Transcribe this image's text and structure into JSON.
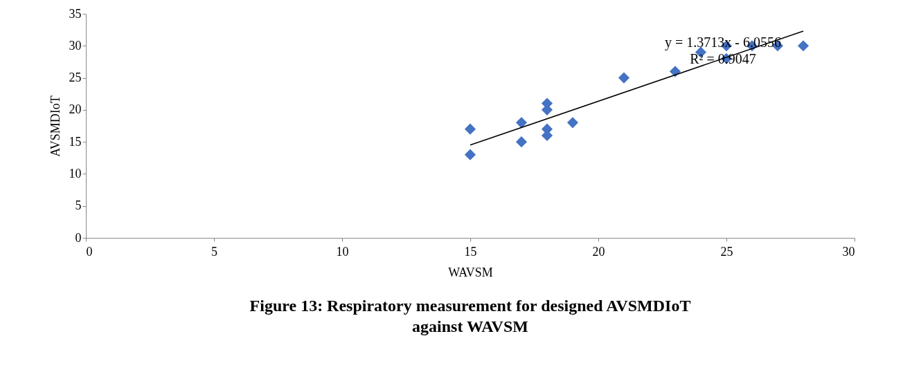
{
  "chart_data": {
    "type": "scatter",
    "title": "Figure 13: Respiratory  measurement  for designed AVSMDIoT against WAVSM",
    "xlabel": "WAVSM",
    "ylabel": "AVSMDIoT",
    "series": [
      {
        "color": "#4472c4",
        "x": [
          15,
          15,
          17,
          17,
          18,
          18,
          18,
          18,
          19,
          21,
          23,
          24,
          25,
          25,
          26,
          27,
          28
        ],
        "values": [
          17,
          13,
          18,
          15,
          21,
          20,
          17,
          16,
          18,
          25,
          26,
          29,
          30,
          28,
          30,
          30,
          30
        ]
      },
      {
        "type": "line",
        "color": "#000000",
        "marker": "none",
        "x": [
          15,
          28
        ],
        "values": [
          14.5,
          32.3
        ]
      }
    ],
    "annotations": [
      "y = 1.3713x - 6.0556",
      "R² = 0.9047"
    ],
    "xlim": [
      0,
      30
    ],
    "xticks": [
      0,
      5,
      10,
      15,
      20,
      25,
      30
    ],
    "ylim": [
      0,
      35
    ],
    "yticks": [
      0,
      5,
      10,
      15,
      20,
      25,
      30,
      35
    ],
    "grid": false,
    "marker": "diamond"
  }
}
